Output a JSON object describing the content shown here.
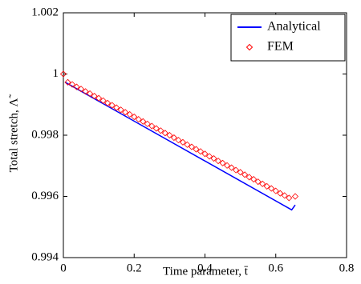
{
  "chart_data": {
    "type": "line",
    "xlabel": "Time parameter, t̄",
    "ylabel": "Total stretch, Λ̃",
    "xlim": [
      0,
      0.8
    ],
    "xticks": [
      0,
      0.2,
      0.4,
      0.6,
      0.8
    ],
    "ylim": [
      0.994,
      1.002
    ],
    "yticks": [
      0.994,
      0.996,
      0.998,
      1,
      1.002
    ],
    "grid": false,
    "legend": "upper right",
    "series": [
      {
        "name": "Analytical",
        "color": "#0000ff",
        "style": "line",
        "x": [
          0.005,
          0.645,
          0.655
        ],
        "values": [
          0.99973,
          0.99556,
          0.99572
        ]
      },
      {
        "name": "FEM",
        "color": "#ff0000",
        "style": "marker",
        "x": [
          0,
          0.0125,
          0.025,
          0.0375,
          0.05,
          0.0625,
          0.075,
          0.0875,
          0.1,
          0.1125,
          0.125,
          0.1375,
          0.15,
          0.1625,
          0.175,
          0.1875,
          0.2,
          0.2125,
          0.225,
          0.2375,
          0.25,
          0.2625,
          0.275,
          0.2875,
          0.3,
          0.3125,
          0.325,
          0.3375,
          0.35,
          0.3625,
          0.375,
          0.3875,
          0.4,
          0.4125,
          0.425,
          0.4375,
          0.45,
          0.4625,
          0.475,
          0.4875,
          0.5,
          0.5125,
          0.525,
          0.5375,
          0.55,
          0.5625,
          0.575,
          0.5875,
          0.6,
          0.6125,
          0.625,
          0.6375,
          0.655
        ],
        "values": [
          1.0,
          0.99973,
          0.99966,
          0.99958,
          0.99951,
          0.99943,
          0.99936,
          0.99928,
          0.99921,
          0.99913,
          0.99905,
          0.99898,
          0.9989,
          0.99883,
          0.99875,
          0.99868,
          0.9986,
          0.99852,
          0.99845,
          0.99837,
          0.9983,
          0.99822,
          0.99815,
          0.99807,
          0.998,
          0.99792,
          0.99784,
          0.99777,
          0.99769,
          0.99762,
          0.99754,
          0.99747,
          0.99739,
          0.99731,
          0.99724,
          0.99716,
          0.99709,
          0.99701,
          0.99694,
          0.99686,
          0.99679,
          0.99671,
          0.99663,
          0.99656,
          0.99648,
          0.99641,
          0.99633,
          0.99626,
          0.99618,
          0.9961,
          0.99603,
          0.99595,
          0.996
        ]
      }
    ]
  }
}
